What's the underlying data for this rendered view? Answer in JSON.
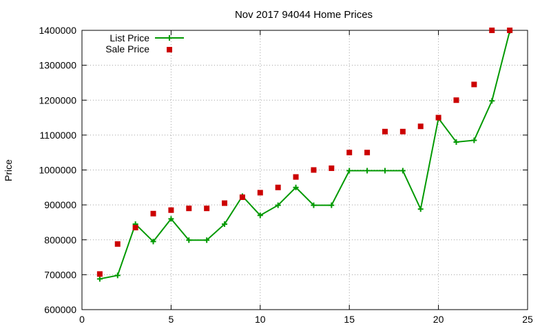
{
  "chart_data": {
    "type": "line",
    "title": "Nov 2017 94044 Home Prices",
    "xlabel": "",
    "ylabel": "Price",
    "xlim": [
      0,
      25
    ],
    "ylim": [
      600000,
      1400000
    ],
    "x_ticks": [
      "0",
      "5",
      "10",
      "15",
      "20",
      "25"
    ],
    "y_ticks": [
      "600000",
      "700000",
      "800000",
      "900000",
      "1000000",
      "1100000",
      "1200000",
      "1300000",
      "1400000"
    ],
    "grid": true,
    "legend_position": "top-left",
    "x": [
      1,
      2,
      3,
      4,
      5,
      6,
      7,
      8,
      9,
      10,
      11,
      12,
      13,
      14,
      15,
      16,
      17,
      18,
      19,
      20,
      21,
      22,
      23,
      24
    ],
    "series": [
      {
        "name": "List Price",
        "style": "line-with-plus-markers",
        "color": "#009900",
        "values": [
          688000,
          698000,
          845000,
          795000,
          860000,
          799000,
          799000,
          845000,
          925000,
          870000,
          899000,
          950000,
          899000,
          899000,
          998000,
          998000,
          998000,
          998000,
          888000,
          1148000,
          1080000,
          1085000,
          1198000,
          1398000
        ]
      },
      {
        "name": "Sale Price",
        "style": "square-markers",
        "color": "#cc0000",
        "values": [
          702000,
          788000,
          835000,
          875000,
          885000,
          890000,
          890000,
          905000,
          922000,
          935000,
          950000,
          980000,
          1000000,
          1005000,
          1050000,
          1050000,
          1110000,
          1110000,
          1125000,
          1150000,
          1200000,
          1245000,
          1400000,
          1400000
        ]
      }
    ]
  }
}
